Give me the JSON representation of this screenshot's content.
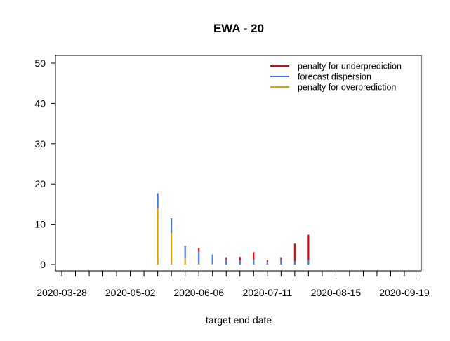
{
  "chart_data": {
    "type": "bar",
    "stacked": true,
    "title": "EWA - 20",
    "xlabel": "target end date",
    "ylabel": "",
    "ylim": [
      0,
      52
    ],
    "yticks": [
      0,
      10,
      20,
      30,
      40,
      50
    ],
    "xlim": [
      "2020-03-21",
      "2020-09-26"
    ],
    "xtick_labels": [
      "2020-03-28",
      "2020-05-02",
      "2020-06-06",
      "2020-07-11",
      "2020-08-15",
      "2020-09-19"
    ],
    "xtick_minor_count": 27,
    "grid": false,
    "legend_position": "top-right",
    "series": [
      {
        "name": "penalty for overprediction",
        "color": "#e69f00"
      },
      {
        "name": "forecast dispersion",
        "color": "#4477ee"
      },
      {
        "name": "penalty for underprediction",
        "color": "#ee0000"
      }
    ],
    "legend_order": [
      "penalty for underprediction",
      "forecast dispersion",
      "penalty for overprediction"
    ],
    "points": [
      {
        "date": "2020-05-16",
        "overprediction": 14.0,
        "dispersion": 3.7,
        "underprediction": 0
      },
      {
        "date": "2020-05-23",
        "overprediction": 7.8,
        "dispersion": 3.7,
        "underprediction": 0
      },
      {
        "date": "2020-05-30",
        "overprediction": 1.5,
        "dispersion": 3.2,
        "underprediction": 0
      },
      {
        "date": "2020-06-06",
        "overprediction": 0.2,
        "dispersion": 3.0,
        "underprediction": 0.9
      },
      {
        "date": "2020-06-13",
        "overprediction": 0.1,
        "dispersion": 2.4,
        "underprediction": 0
      },
      {
        "date": "2020-06-20",
        "overprediction": 0,
        "dispersion": 1.4,
        "underprediction": 0.4
      },
      {
        "date": "2020-06-27",
        "overprediction": 0,
        "dispersion": 1.0,
        "underprediction": 0.9
      },
      {
        "date": "2020-07-04",
        "overprediction": 0,
        "dispersion": 1.2,
        "underprediction": 1.9
      },
      {
        "date": "2020-07-11",
        "overprediction": 0,
        "dispersion": 0.7,
        "underprediction": 0.4
      },
      {
        "date": "2020-07-18",
        "overprediction": 0,
        "dispersion": 1.4,
        "underprediction": 0.4
      },
      {
        "date": "2020-07-25",
        "overprediction": 0,
        "dispersion": 0.8,
        "underprediction": 4.4
      },
      {
        "date": "2020-08-01",
        "overprediction": 0,
        "dispersion": 1.1,
        "underprediction": 6.3
      }
    ]
  }
}
